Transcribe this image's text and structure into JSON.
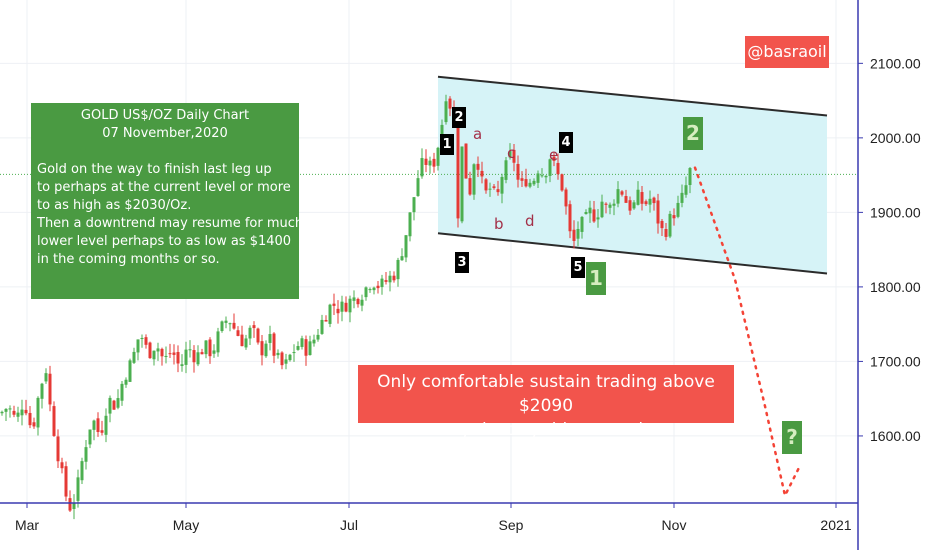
{
  "chart_data": {
    "type": "candlestick",
    "price_ticks": [
      "2100.00",
      "2000.00",
      "1900.00",
      "1800.00",
      "1700.00",
      "1600.00"
    ],
    "time_ticks": [
      "Mar",
      "May",
      "Jul",
      "Sep",
      "Nov",
      "2021"
    ],
    "ylim": [
      1510,
      2185
    ],
    "current_price": 1951,
    "colors": {
      "up": "#4caf50",
      "down": "#e53935",
      "channel_fill": "#d6f3f7",
      "channel_line": "#2b2b2b",
      "forecast": "#f44336",
      "axis": "#3a3ab0",
      "current_line": "#4caf50"
    },
    "ohlc_path": [
      [
        0,
        1630
      ],
      [
        8,
        1640
      ],
      [
        16,
        1620
      ],
      [
        24,
        1650
      ],
      [
        32,
        1605
      ],
      [
        40,
        1665
      ],
      [
        46,
        1690
      ],
      [
        50,
        1640
      ],
      [
        55,
        1600
      ],
      [
        60,
        1560
      ],
      [
        66,
        1520
      ],
      [
        70,
        1505
      ],
      [
        76,
        1520
      ],
      [
        84,
        1580
      ],
      [
        92,
        1625
      ],
      [
        100,
        1600
      ],
      [
        108,
        1650
      ],
      [
        116,
        1640
      ],
      [
        124,
        1680
      ],
      [
        132,
        1700
      ],
      [
        140,
        1740
      ],
      [
        148,
        1710
      ],
      [
        156,
        1725
      ],
      [
        164,
        1700
      ],
      [
        172,
        1715
      ],
      [
        180,
        1690
      ],
      [
        188,
        1720
      ],
      [
        196,
        1705
      ],
      [
        204,
        1720
      ],
      [
        212,
        1712
      ],
      [
        220,
        1740
      ],
      [
        228,
        1760
      ],
      [
        236,
        1740
      ],
      [
        244,
        1725
      ],
      [
        252,
        1745
      ],
      [
        260,
        1710
      ],
      [
        268,
        1735
      ],
      [
        276,
        1705
      ],
      [
        284,
        1690
      ],
      [
        292,
        1712
      ],
      [
        300,
        1725
      ],
      [
        308,
        1715
      ],
      [
        316,
        1735
      ],
      [
        324,
        1760
      ],
      [
        332,
        1778
      ],
      [
        340,
        1770
      ],
      [
        348,
        1780
      ],
      [
        356,
        1785
      ],
      [
        364,
        1795
      ],
      [
        372,
        1810
      ],
      [
        380,
        1800
      ],
      [
        388,
        1810
      ],
      [
        396,
        1820
      ],
      [
        404,
        1860
      ],
      [
        410,
        1895
      ],
      [
        416,
        1935
      ],
      [
        420,
        1960
      ],
      [
        426,
        1968
      ],
      [
        432,
        1958
      ],
      [
        438,
        1990
      ],
      [
        442,
        2020
      ],
      [
        446,
        2060
      ],
      [
        450,
        2045
      ],
      [
        454,
        2020
      ],
      [
        458,
        1900
      ],
      [
        462,
        1985
      ],
      [
        466,
        1950
      ],
      [
        470,
        1930
      ],
      [
        476,
        1990
      ],
      [
        480,
        1945
      ],
      [
        486,
        1925
      ],
      [
        492,
        1935
      ],
      [
        496,
        1910
      ],
      [
        502,
        1950
      ],
      [
        508,
        1965
      ],
      [
        512,
        1985
      ],
      [
        516,
        1955
      ],
      [
        520,
        1930
      ],
      [
        526,
        1945
      ],
      [
        532,
        1938
      ],
      [
        538,
        1960
      ],
      [
        544,
        1950
      ],
      [
        550,
        1975
      ],
      [
        556,
        1955
      ],
      [
        562,
        1935
      ],
      [
        566,
        1905
      ],
      [
        570,
        1870
      ],
      [
        574,
        1860
      ],
      [
        578,
        1880
      ],
      [
        584,
        1885
      ],
      [
        590,
        1900
      ],
      [
        596,
        1895
      ],
      [
        602,
        1915
      ],
      [
        608,
        1900
      ],
      [
        614,
        1920
      ],
      [
        620,
        1935
      ],
      [
        626,
        1915
      ],
      [
        632,
        1905
      ],
      [
        638,
        1920
      ],
      [
        644,
        1910
      ],
      [
        650,
        1918
      ],
      [
        656,
        1900
      ],
      [
        660,
        1880
      ],
      [
        664,
        1870
      ],
      [
        668,
        1885
      ],
      [
        674,
        1900
      ],
      [
        680,
        1910
      ],
      [
        686,
        1935
      ],
      [
        690,
        1955
      ]
    ],
    "channel_upper": [
      [
        438,
        2082
      ],
      [
        827,
        2030
      ]
    ],
    "channel_lower": [
      [
        438,
        1872
      ],
      [
        827,
        1818
      ]
    ],
    "forecast_path": [
      [
        695,
        1960
      ],
      [
        735,
        1810
      ],
      [
        765,
        1640
      ],
      [
        785,
        1520
      ],
      [
        800,
        1560
      ]
    ]
  },
  "watermark": {
    "text": "@basraoil",
    "color": "#f2544c"
  },
  "note": {
    "title_lines": [
      "GOLD US$/OZ Daily Chart",
      "07 November,2020"
    ],
    "body_lines": [
      "Gold on the way to finish last leg up",
      "to perhaps at the current level or more",
      "to as high as $2030/Oz.",
      "Then a downtrend may resume for much",
      "lower level perhaps to as low as $1400",
      "in the coming months or so."
    ]
  },
  "warning": {
    "lines": [
      "Only comfortable sustain trading above $2090",
      "may destroy this scenario."
    ]
  },
  "wave_markers": {
    "black": [
      "1",
      "2",
      "3",
      "4",
      "5"
    ],
    "green": [
      "1",
      "2",
      "?"
    ],
    "letters": [
      "a",
      "b",
      "c",
      "d",
      "e"
    ]
  }
}
